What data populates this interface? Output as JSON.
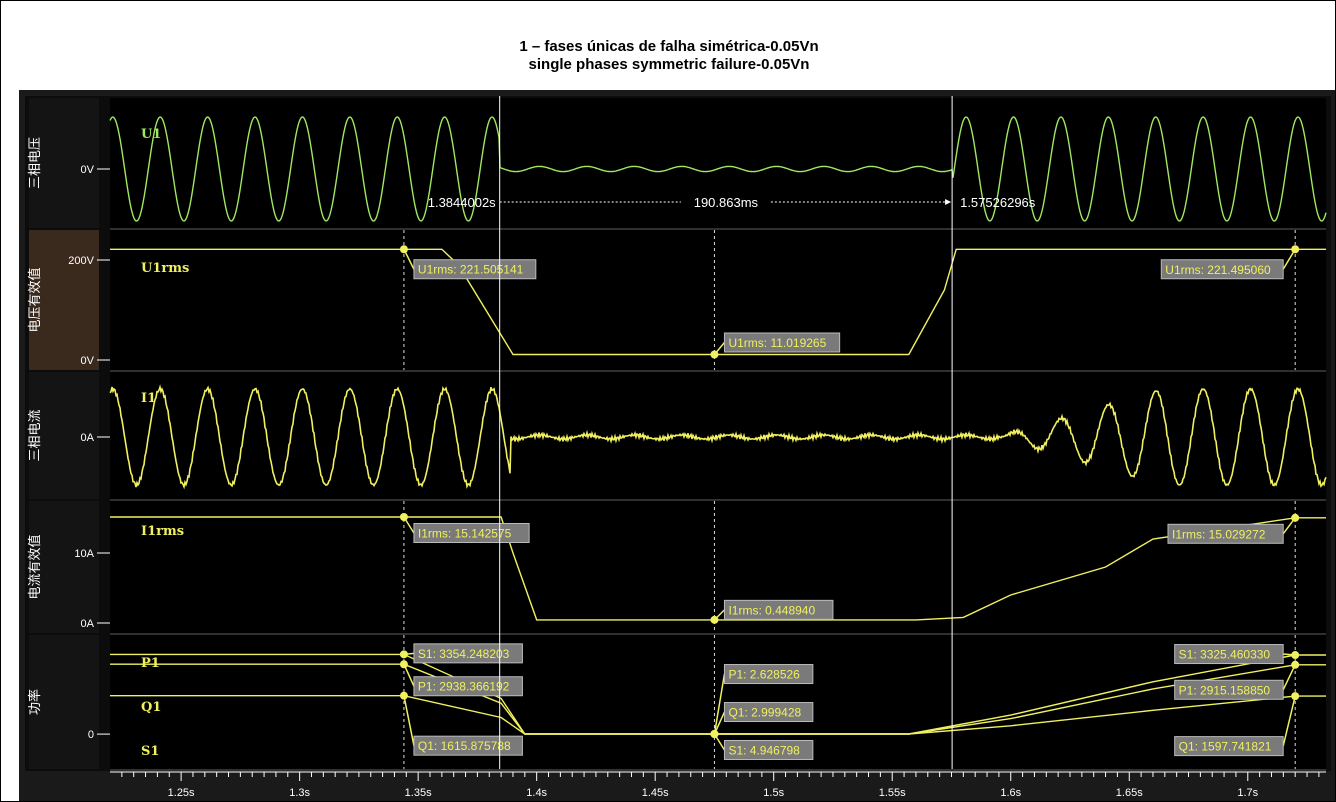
{
  "title_line1": "1 – fases únicas de falha simétrica-0.05Vn",
  "title_line2": "single phases symmetric failure-0.05Vn",
  "colors": {
    "background": "#000000",
    "voltage_trace": "#a0e860",
    "trace": "#f0f060",
    "label_box": "#7a7a7a",
    "cursor": "#ffffff",
    "axis_text": "#ffffff"
  },
  "x_axis": {
    "ticks": [
      "1.25s",
      "1.3s",
      "1.35s",
      "1.4s",
      "1.45s",
      "1.5s",
      "1.55s",
      "1.6s",
      "1.65s",
      "1.7s"
    ],
    "range": [
      1.22,
      1.733
    ]
  },
  "measurement": {
    "t_start_label": "1.3844002s",
    "t_end_label": "1.57526296s",
    "delta_label": "190.863ms"
  },
  "cursors": [
    1.3844002,
    1.57526296
  ],
  "chart_data": [
    {
      "type": "line",
      "panel_label": "三相电压",
      "trace_name": "U1",
      "y_ticks": [
        "0V"
      ],
      "description_values": {
        "frequency_hz": 50,
        "fault_start_s": 1.3844,
        "fault_end_s": 1.5753
      }
    },
    {
      "type": "line",
      "panel_label": "电压有效值",
      "trace_name": "U1rms",
      "y_ticks": [
        "200V",
        "0V"
      ],
      "ylim": [
        0,
        240
      ],
      "series": [
        {
          "name": "U1rms",
          "x": [
            1.22,
            1.344,
            1.36,
            1.367,
            1.385,
            1.39,
            1.475,
            1.557,
            1.565,
            1.572,
            1.577,
            1.6,
            1.72,
            1.733
          ],
          "values": [
            221.5,
            221.5,
            221.5,
            190,
            50,
            11.0,
            11.0,
            11.0,
            80,
            140,
            221.5,
            221.5,
            221.5,
            221.5
          ]
        }
      ],
      "annotations": [
        {
          "text": "U1rms: 221.505141",
          "x": 1.344,
          "y": 221.505141
        },
        {
          "text": "U1rms: 11.019265",
          "x": 1.475,
          "y": 11.019265
        },
        {
          "text": "U1rms: 221.495060",
          "x": 1.72,
          "y": 221.49506
        }
      ]
    },
    {
      "type": "line",
      "panel_label": "三相电流",
      "trace_name": "I1",
      "y_ticks": [
        "0A"
      ],
      "description_values": {
        "frequency_hz": 50,
        "fault_start_s": 1.3844,
        "fault_end_s": 1.5753
      }
    },
    {
      "type": "line",
      "panel_label": "电流有效值",
      "trace_name": "I1rms",
      "y_ticks": [
        "10A",
        "0A"
      ],
      "ylim": [
        0,
        16
      ],
      "series": [
        {
          "name": "I1rms",
          "x": [
            1.22,
            1.344,
            1.385,
            1.39,
            1.4,
            1.475,
            1.56,
            1.58,
            1.6,
            1.64,
            1.66,
            1.72,
            1.733
          ],
          "values": [
            15.14,
            15.14,
            15.14,
            10,
            0.45,
            0.45,
            0.45,
            0.8,
            4,
            8,
            12,
            15.03,
            15.03
          ]
        }
      ],
      "annotations": [
        {
          "text": "I1rms: 15.142575",
          "x": 1.344,
          "y": 15.142575
        },
        {
          "text": "I1rms: 0.448940",
          "x": 1.475,
          "y": 0.44894
        },
        {
          "text": "I1rms: 15.029272",
          "x": 1.72,
          "y": 15.029272
        }
      ]
    },
    {
      "type": "line",
      "panel_label": "功率",
      "trace_names": [
        "P1",
        "Q1",
        "S1"
      ],
      "y_ticks": [
        "0"
      ],
      "ylim": [
        -1300,
        4000
      ],
      "series": [
        {
          "name": "S1",
          "x": [
            1.22,
            1.344,
            1.385,
            1.395,
            1.475,
            1.557,
            1.6,
            1.66,
            1.72,
            1.733
          ],
          "values": [
            3354,
            3354,
            1500,
            5,
            5,
            5,
            800,
            2200,
            3325,
            3325
          ]
        },
        {
          "name": "P1",
          "x": [
            1.22,
            1.344,
            1.385,
            1.395,
            1.475,
            1.557,
            1.6,
            1.66,
            1.72,
            1.733
          ],
          "values": [
            2938,
            2938,
            1300,
            3,
            3,
            3,
            650,
            1900,
            2915,
            2915
          ]
        },
        {
          "name": "Q1",
          "x": [
            1.22,
            1.344,
            1.385,
            1.395,
            1.475,
            1.557,
            1.6,
            1.66,
            1.72,
            1.733
          ],
          "values": [
            1616,
            1616,
            700,
            3,
            3,
            3,
            350,
            1000,
            1598,
            1598
          ]
        }
      ],
      "annotations": [
        {
          "text": "S1: 3354.248203",
          "x": 1.344,
          "y": 3354.248203
        },
        {
          "text": "P1: 2938.366192",
          "x": 1.344,
          "y": 2938.366192
        },
        {
          "text": "Q1: 1615.875788",
          "x": 1.344,
          "y": 1615.875788
        },
        {
          "text": "P1: 2.628526",
          "x": 1.475,
          "y": 2.628526
        },
        {
          "text": "Q1: 2.999428",
          "x": 1.475,
          "y": 2.999428
        },
        {
          "text": "S1: 4.946798",
          "x": 1.475,
          "y": 4.946798
        },
        {
          "text": "S1: 3325.460330",
          "x": 1.72,
          "y": 3325.46033
        },
        {
          "text": "P1: 2915.158850",
          "x": 1.72,
          "y": 2915.15885
        },
        {
          "text": "Q1: 1597.741821",
          "x": 1.72,
          "y": 1597.741821
        }
      ]
    }
  ]
}
